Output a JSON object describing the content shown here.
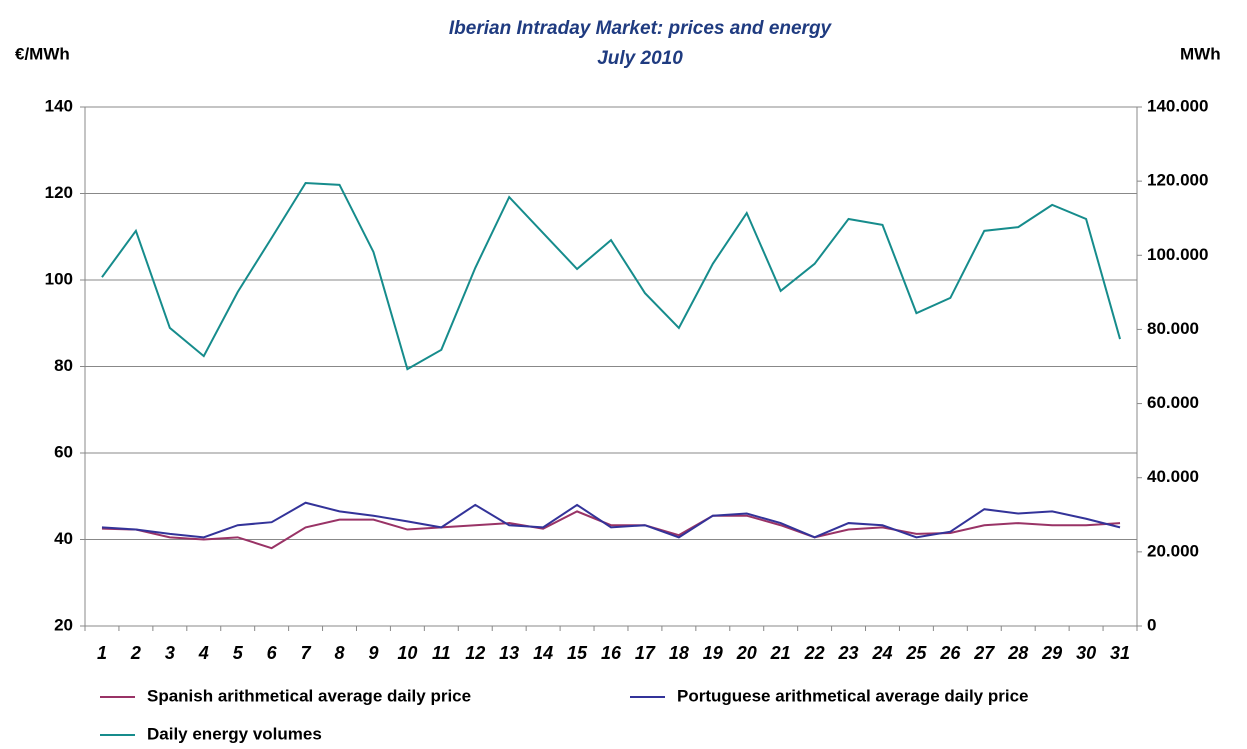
{
  "chart_data": {
    "type": "line",
    "title": "Iberian Intraday Market: prices and energy",
    "subtitle": "July 2010",
    "ylabel": "€/MWh",
    "y2label": "MWh",
    "categories": [
      "1",
      "2",
      "3",
      "4",
      "5",
      "6",
      "7",
      "8",
      "9",
      "10",
      "11",
      "12",
      "13",
      "14",
      "15",
      "16",
      "17",
      "18",
      "19",
      "20",
      "21",
      "22",
      "23",
      "24",
      "25",
      "26",
      "27",
      "28",
      "29",
      "30",
      "31"
    ],
    "series": [
      {
        "name": "Spanish arithmetical average daily price",
        "color": "#993366",
        "values": [
          42.5,
          42.3,
          40.5,
          40,
          40.5,
          38,
          42.8,
          44.6,
          44.6,
          42.3,
          42.8,
          43.3,
          43.8,
          42.5,
          46.5,
          43.3,
          43.3,
          41,
          45.5,
          45.5,
          43.3,
          40.5,
          42.3,
          42.8,
          41.3,
          41.5,
          43.3,
          43.8,
          43.3,
          43.3,
          43.8
        ]
      },
      {
        "name": "Portuguese arithmetical average daily price",
        "color": "#333399",
        "values": [
          42.8,
          42.3,
          41.3,
          40.5,
          43.3,
          44,
          48.5,
          46.5,
          45.5,
          44.2,
          42.8,
          48,
          43.3,
          42.8,
          48,
          42.8,
          43.3,
          40.5,
          45.5,
          46,
          43.8,
          40.5,
          43.8,
          43.3,
          40.5,
          41.8,
          47,
          46,
          46.5,
          44.8,
          42.8
        ]
      },
      {
        "name": "Daily energy volumes",
        "color": "#168c8c",
        "axis": "y2",
        "values": [
          94100,
          106600,
          80400,
          72800,
          90100,
          104700,
          119500,
          119000,
          100900,
          69300,
          74500,
          96600,
          115700,
          106000,
          96300,
          104100,
          89800,
          80400,
          97700,
          111400,
          90400,
          97700,
          109800,
          108200,
          84400,
          88500,
          106600,
          107600,
          113600,
          109800,
          77400
        ]
      }
    ],
    "ylim": [
      20,
      140
    ],
    "yticks": [
      20,
      40,
      60,
      80,
      100,
      120,
      140
    ],
    "y2lim": [
      0,
      140000
    ],
    "y2ticks": [
      0,
      {
        "value": 20000,
        "label": "20.000"
      },
      {
        "value": 40000,
        "label": "40.000"
      },
      {
        "value": 60000,
        "label": "60.000"
      },
      {
        "value": 80000,
        "label": "80.000"
      },
      {
        "value": 100000,
        "label": "100.000"
      },
      {
        "value": 120000,
        "label": "120.000"
      },
      {
        "value": 140000,
        "label": "140.000"
      }
    ],
    "grid": true,
    "legend": "bottom"
  }
}
